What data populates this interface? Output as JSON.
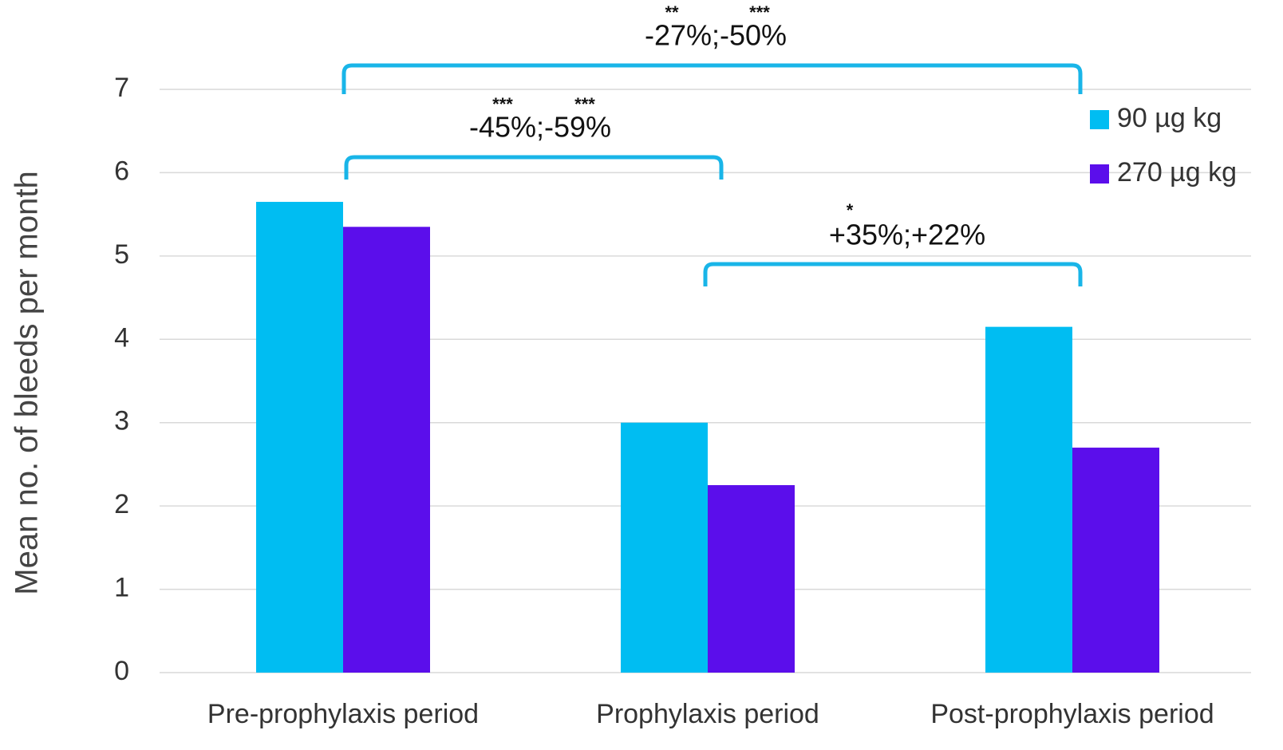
{
  "chart_data": {
    "type": "bar",
    "y_label": "Mean no. of bleeds per month",
    "categories": [
      "Pre-prophylaxis period",
      "Prophylaxis period",
      "Post-prophylaxis period"
    ],
    "series": [
      {
        "name": "90 µg kg",
        "color": "#00bdf2",
        "values": [
          5.65,
          3.0,
          4.15
        ]
      },
      {
        "name": "270 µg kg",
        "color": "#5b0eeb",
        "values": [
          5.35,
          2.25,
          2.7
        ]
      }
    ],
    "ylim": [
      0,
      7
    ],
    "yticks": [
      0,
      1,
      2,
      3,
      4,
      5,
      6,
      7
    ],
    "grid": true,
    "legend": "right",
    "annotations": [
      {
        "text": "-27%;-50%",
        "marks": [
          "**",
          "***"
        ]
      },
      {
        "text": "-45%;-59%",
        "marks": [
          "***",
          "***"
        ]
      },
      {
        "text": "+35%;+22%",
        "marks": [
          "*"
        ]
      }
    ],
    "bracket_color": "#19b5e8"
  }
}
